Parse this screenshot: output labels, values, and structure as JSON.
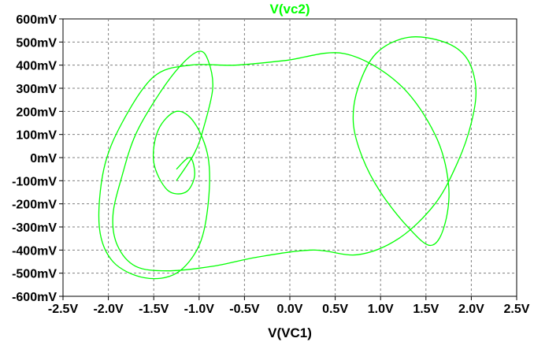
{
  "chart_data": {
    "type": "line",
    "title": "V(vc2)",
    "xlabel": "V(VC1)",
    "ylabel": "",
    "xlim": [
      -2.5,
      2.5
    ],
    "ylim": [
      -0.6,
      0.6
    ],
    "x_ticks": [
      {
        "value": -2.5,
        "label": "-2.5V"
      },
      {
        "value": -2.0,
        "label": "-2.0V"
      },
      {
        "value": -1.5,
        "label": "-1.5V"
      },
      {
        "value": -1.0,
        "label": "-1.0V"
      },
      {
        "value": -0.5,
        "label": "-0.5V"
      },
      {
        "value": 0.0,
        "label": "0.0V"
      },
      {
        "value": 0.5,
        "label": "0.5V"
      },
      {
        "value": 1.0,
        "label": "1.0V"
      },
      {
        "value": 1.5,
        "label": "1.5V"
      },
      {
        "value": 2.0,
        "label": "2.0V"
      },
      {
        "value": 2.5,
        "label": "2.5V"
      }
    ],
    "y_ticks": [
      {
        "value": 0.6,
        "label": "600mV"
      },
      {
        "value": 0.5,
        "label": "500mV"
      },
      {
        "value": 0.4,
        "label": "400mV"
      },
      {
        "value": 0.3,
        "label": "300mV"
      },
      {
        "value": 0.2,
        "label": "200mV"
      },
      {
        "value": 0.1,
        "label": "100mV"
      },
      {
        "value": 0.0,
        "label": "0mV"
      },
      {
        "value": -0.1,
        "label": "-100mV"
      },
      {
        "value": -0.2,
        "label": "-200mV"
      },
      {
        "value": -0.3,
        "label": "-300mV"
      },
      {
        "value": -0.4,
        "label": "-400mV"
      },
      {
        "value": -0.5,
        "label": "-500mV"
      },
      {
        "value": -0.6,
        "label": "-600mV"
      }
    ],
    "grid": true,
    "series_color": "#00ff00",
    "series": [
      {
        "x": [
          -1.25,
          -1.05,
          -0.95,
          -0.85,
          -0.9,
          -1.0,
          -1.2,
          -1.45,
          -1.7,
          -1.85,
          -1.95,
          -1.9,
          -1.7,
          -1.35,
          -0.85,
          -0.35,
          0.25,
          0.75,
          1.2,
          1.6,
          1.85,
          2.0,
          2.05,
          1.95,
          1.7,
          1.3,
          0.95,
          0.75,
          0.7,
          0.8,
          1.0,
          1.3,
          1.55,
          1.7,
          1.75,
          1.6,
          1.2,
          0.6,
          -0.05,
          -0.6,
          -1.1,
          -1.5,
          -1.85,
          -2.05,
          -2.1,
          -1.95,
          -1.6,
          -1.25,
          -1.0,
          -0.9,
          -0.9,
          -1.05,
          -1.25,
          -1.45,
          -1.5,
          -1.35,
          -1.15,
          -1.05,
          -1.1,
          -1.25
        ],
        "y": [
          -0.1,
          0.02,
          0.13,
          0.3,
          0.42,
          0.46,
          0.4,
          0.27,
          0.1,
          -0.08,
          -0.25,
          -0.38,
          -0.47,
          -0.49,
          -0.47,
          -0.43,
          -0.4,
          -0.42,
          -0.35,
          -0.2,
          -0.02,
          0.15,
          0.3,
          0.43,
          0.5,
          0.52,
          0.45,
          0.3,
          0.15,
          0.0,
          -0.15,
          -0.3,
          -0.38,
          -0.3,
          -0.12,
          0.1,
          0.32,
          0.45,
          0.42,
          0.4,
          0.4,
          0.35,
          0.15,
          -0.05,
          -0.3,
          -0.45,
          -0.52,
          -0.5,
          -0.38,
          -0.2,
          0.0,
          0.15,
          0.2,
          0.12,
          -0.02,
          -0.14,
          -0.15,
          -0.08,
          0.0,
          -0.05
        ]
      }
    ]
  }
}
